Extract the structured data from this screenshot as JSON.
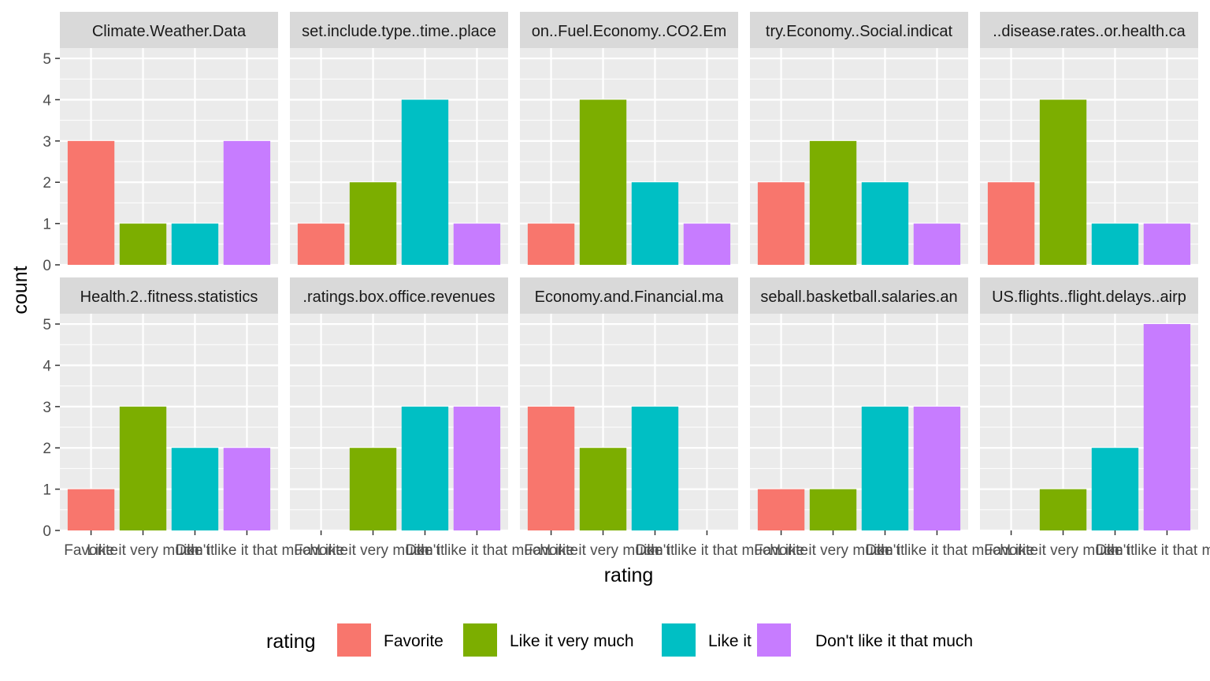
{
  "chart_data": {
    "type": "bar",
    "xlabel": "rating",
    "ylabel": "count",
    "ylim": [
      0,
      5.25
    ],
    "yticks": [
      0,
      1,
      2,
      3,
      4,
      5
    ],
    "categories": [
      "Favorite",
      "Like it very much",
      "Like it",
      "Don't like it that much"
    ],
    "legend": {
      "title": "rating",
      "position": "bottom",
      "entries": [
        "Favorite",
        "Like it very much",
        "Like it",
        "Don't like it that much"
      ]
    },
    "colors": {
      "Favorite": "#F8766D",
      "Like it very much": "#7CAE00",
      "Like it": "#00BFC4",
      "Don't like it that much": "#C77CFF"
    },
    "grid": true,
    "panel_background": "#EBEBEB",
    "strip_background": "#D9D9D9",
    "facets": [
      {
        "label": "Climate.Weather.Data",
        "values": [
          3,
          1,
          1,
          3
        ]
      },
      {
        "label": "set.include.type..time..place",
        "values": [
          1,
          2,
          4,
          1
        ]
      },
      {
        "label": "on..Fuel.Economy..CO2.Em",
        "values": [
          1,
          4,
          2,
          1
        ]
      },
      {
        "label": "try.Economy..Social.indicat",
        "values": [
          2,
          3,
          2,
          1
        ]
      },
      {
        "label": "..disease.rates..or.health.ca",
        "values": [
          2,
          4,
          1,
          1
        ]
      },
      {
        "label": "Health.2..fitness.statistics",
        "values": [
          1,
          3,
          2,
          2
        ]
      },
      {
        "label": ".ratings.box.office.revenues",
        "values": [
          0,
          2,
          3,
          3
        ]
      },
      {
        "label": "Economy.and.Financial.ma",
        "values": [
          3,
          2,
          3,
          0
        ]
      },
      {
        "label": "seball.basketball.salaries.an",
        "values": [
          1,
          1,
          3,
          3
        ]
      },
      {
        "label": "US.flights..flight.delays..airp",
        "values": [
          0,
          1,
          2,
          5
        ]
      }
    ]
  }
}
